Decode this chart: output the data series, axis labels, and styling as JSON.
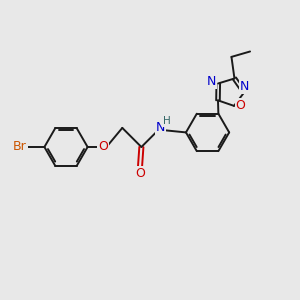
{
  "bg_color": "#e8e8e8",
  "bond_color": "#1a1a1a",
  "bond_lw": 1.4,
  "atom_colors": {
    "Br": "#cc5500",
    "O": "#cc0000",
    "N": "#0000cc",
    "H": "#336666",
    "C": "#1a1a1a"
  },
  "font_size": 9.0,
  "font_size_H": 7.5,
  "ring_r": 0.72,
  "pent_r": 0.48,
  "dbo": 0.065,
  "xlim": [
    0,
    10
  ],
  "ylim": [
    0,
    10
  ]
}
